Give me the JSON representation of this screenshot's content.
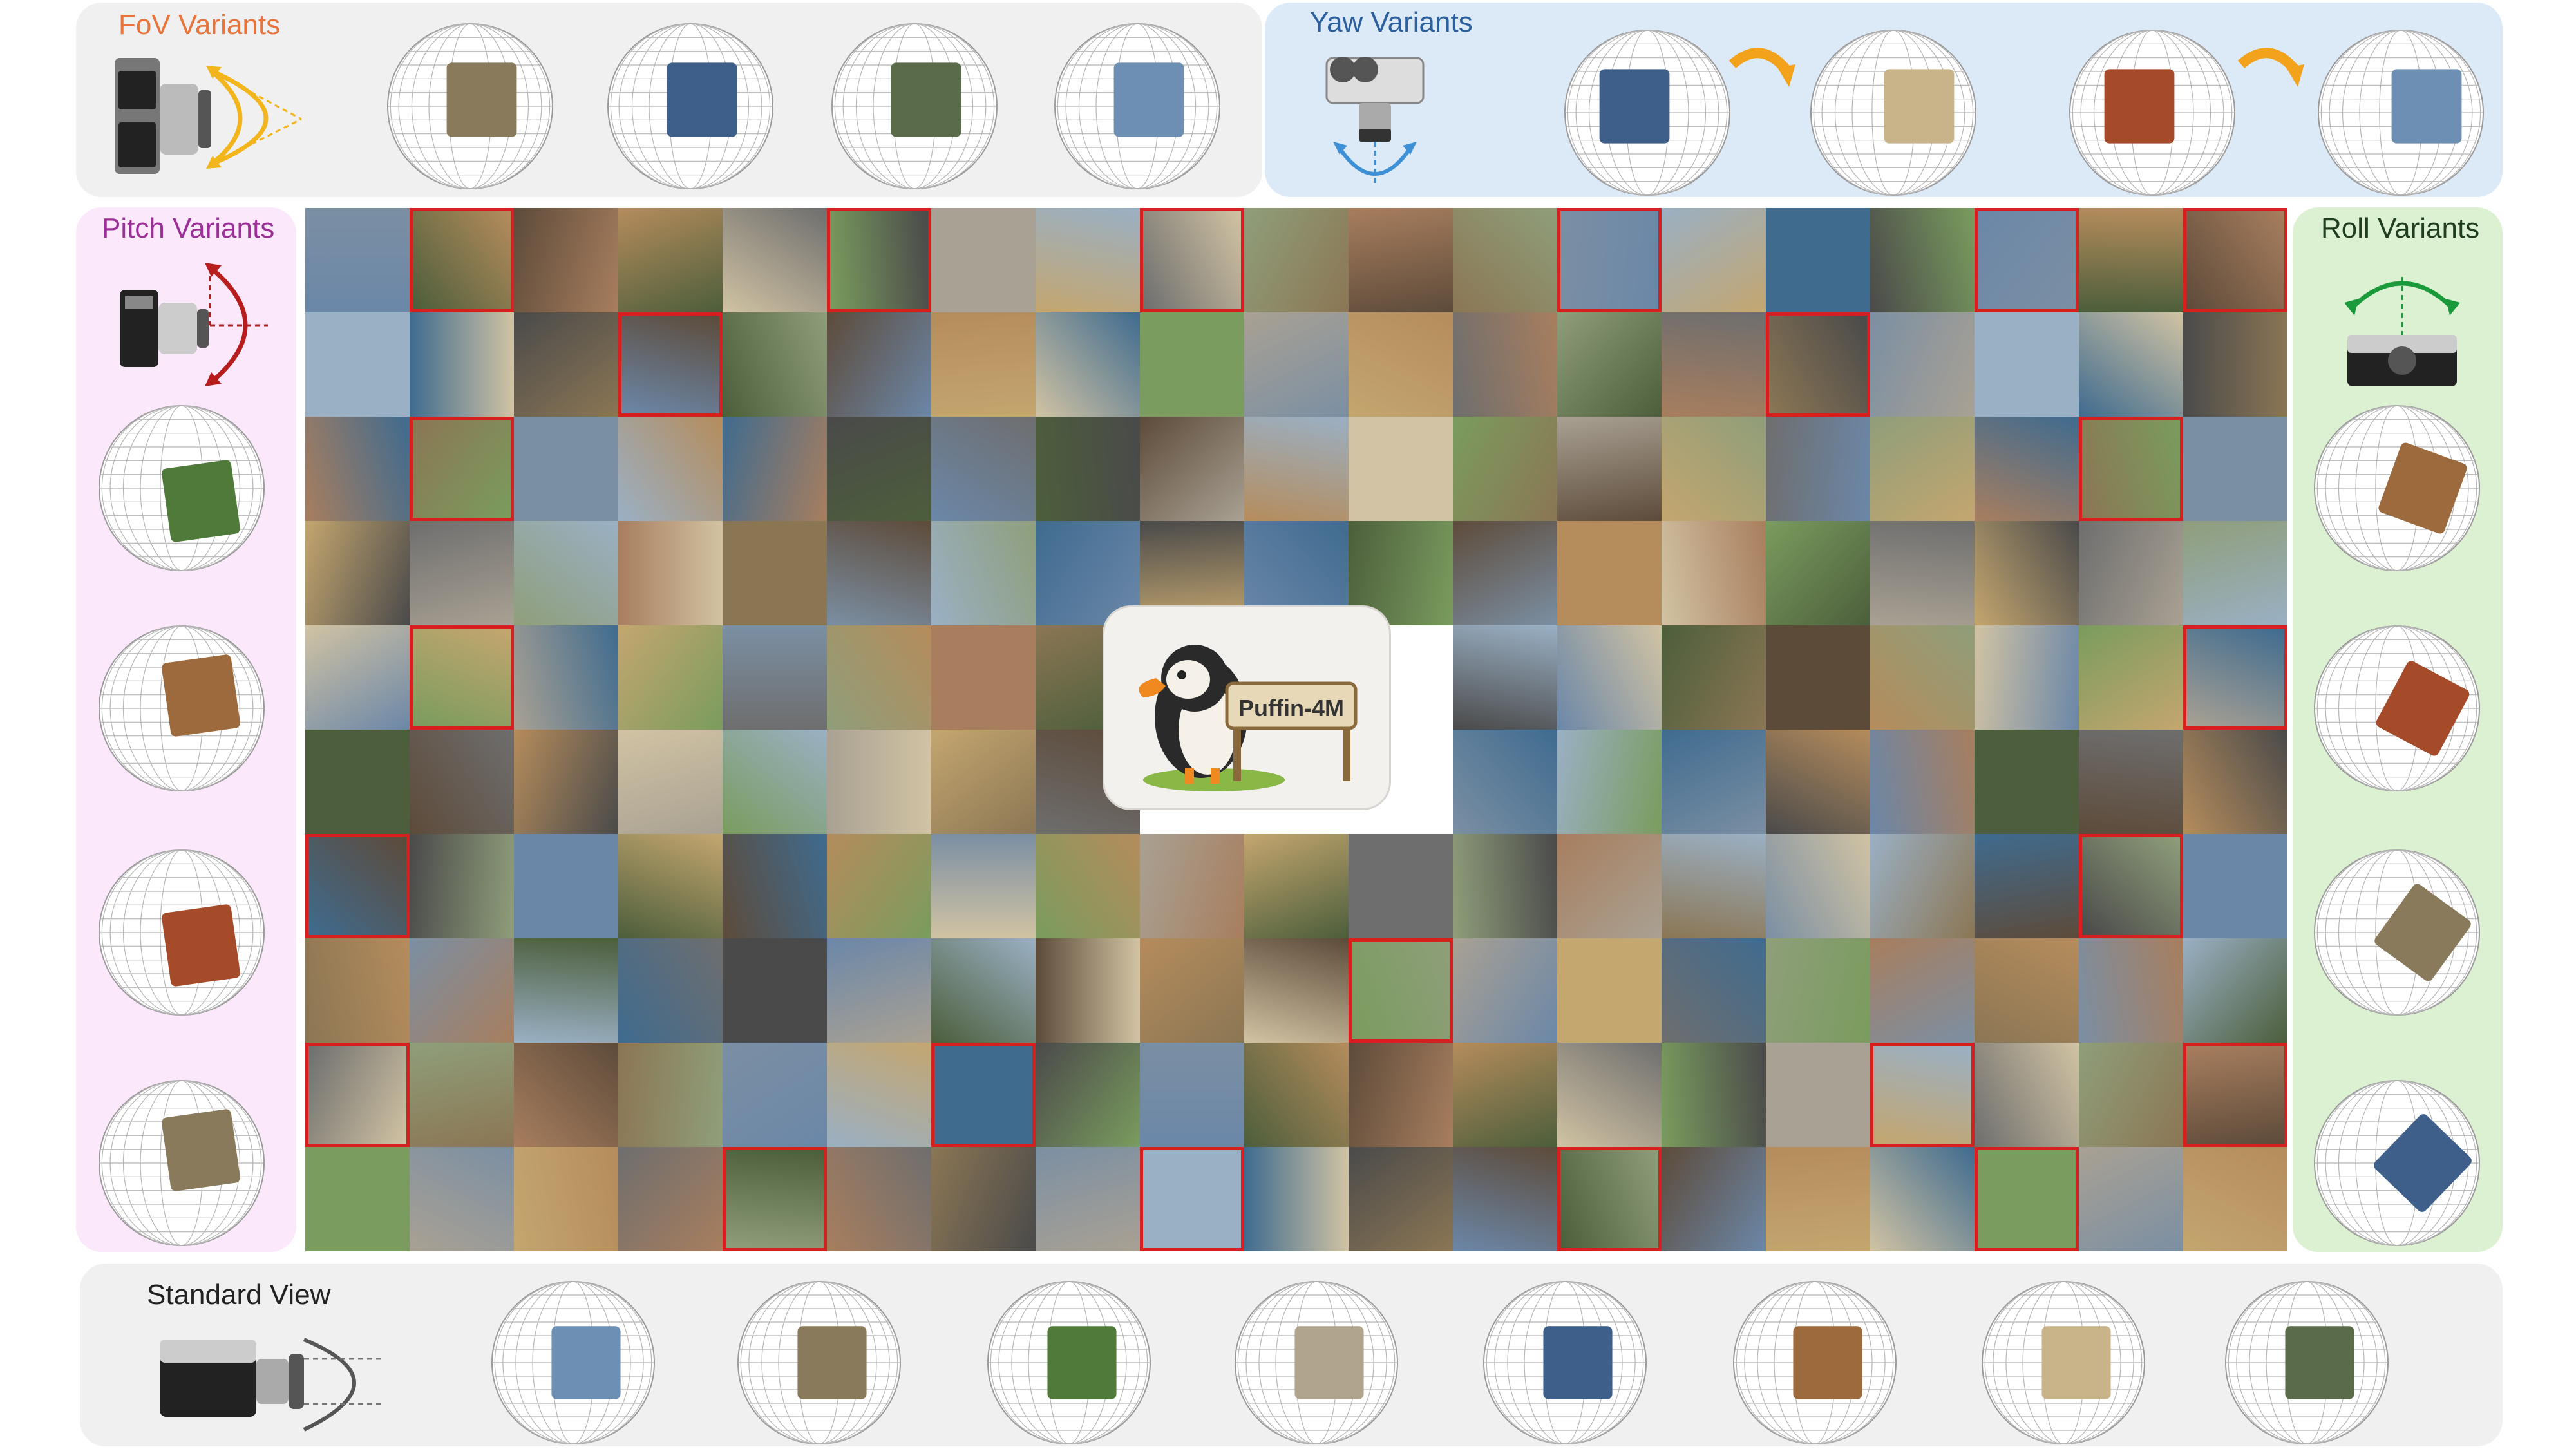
{
  "labels": {
    "fov": "FoV Variants",
    "yaw": "Yaw Variants",
    "pitch": "Pitch Variants",
    "roll": "Roll Variants",
    "standard": "Standard View",
    "logo": "Puffin-4M"
  },
  "colors": {
    "fov_panel": "#f0f0f0",
    "yaw_panel": "#dce9f7",
    "pitch_panel": "#fbe8fb",
    "roll_panel": "#dcf0d2",
    "standard_panel": "#f0f0f0",
    "fov_text": "#e8743b",
    "yaw_text": "#2c5f9e",
    "pitch_text": "#9b2f97",
    "roll_text": "#1f3d1f",
    "standard_text": "#222222",
    "highlight": "#d71f1f",
    "fov_arc": "#f3b51c",
    "yaw_arrow": "#f3a21c",
    "yaw_arc": "#3d8fd6",
    "pitch_arc": "#b81d1d",
    "roll_arc": "#1a9a3a"
  },
  "icons": [
    "camera-icon",
    "sphere-icon",
    "arrow-icon",
    "puffin-icon"
  ],
  "grid": {
    "cols": 19,
    "rows": 10,
    "highlighted": [
      [
        0,
        1
      ],
      [
        0,
        5
      ],
      [
        0,
        8
      ],
      [
        0,
        12
      ],
      [
        0,
        16
      ],
      [
        0,
        18
      ],
      [
        1,
        3
      ],
      [
        1,
        14
      ],
      [
        2,
        1
      ],
      [
        2,
        17
      ],
      [
        4,
        1
      ],
      [
        4,
        18
      ],
      [
        6,
        0
      ],
      [
        6,
        17
      ],
      [
        7,
        10
      ],
      [
        8,
        0
      ],
      [
        8,
        6
      ],
      [
        8,
        15
      ],
      [
        8,
        18
      ],
      [
        9,
        4
      ],
      [
        9,
        8
      ],
      [
        9,
        12
      ],
      [
        9,
        16
      ]
    ],
    "logo_cell": {
      "rows": [
        4,
        5
      ],
      "cols": [
        8,
        9,
        10
      ]
    }
  }
}
